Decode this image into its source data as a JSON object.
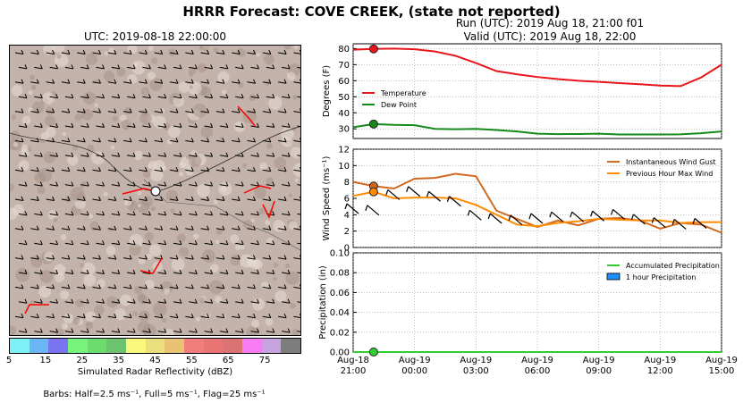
{
  "main_title": "HRRR Forecast: COVE CREEK, (state not reported)",
  "map": {
    "title": "UTC: 2019-08-18 22:00:00",
    "colorbar_label": "Simulated Radar Reflectivity (dBZ)",
    "colorbar_ticks": [
      "5",
      "15",
      "25",
      "35",
      "45",
      "55",
      "65",
      "75"
    ],
    "colorbar_colors": [
      "#7cf1f6",
      "#6bb5f4",
      "#7a74f3",
      "#79f47a",
      "#6cdc6e",
      "#6cc36f",
      "#f9f77c",
      "#ece07c",
      "#e9c274",
      "#f37c7c",
      "#e97474",
      "#da7474",
      "#f97cf7",
      "#c5a2e0",
      "#7d7d7d"
    ],
    "barbs_note": "Barbs: Half=2.5 ms⁻¹, Full=5 ms⁻¹, Flag=25 ms⁻¹",
    "terrain_color": "#c4b3aa"
  },
  "run_line": "Run (UTC): 2019 Aug 18, 21:00 f01",
  "valid_line": "Valid (UTC): 2019 Aug 18, 22:00",
  "chart_data": [
    {
      "type": "line",
      "ylabel": "Degrees (F)",
      "ylim": [
        24,
        83
      ],
      "yticks": [
        30,
        40,
        50,
        60,
        70,
        80
      ],
      "grid": true,
      "legend_position": "left",
      "x_hours": [
        0,
        1,
        2,
        3,
        4,
        5,
        6,
        7,
        8,
        9,
        10,
        11,
        12,
        13,
        14,
        15,
        16,
        17,
        18
      ],
      "series": [
        {
          "name": "Temperature",
          "color": "#e8151b",
          "values": [
            79.3,
            79.8,
            80.0,
            79.6,
            78.2,
            75.5,
            71.0,
            66.0,
            64.0,
            62.3,
            61.0,
            60.0,
            59.3,
            58.5,
            57.8,
            57.0,
            56.6,
            62.0,
            70.0
          ],
          "marker_hour": 1
        },
        {
          "name": "Dew Point",
          "color": "#15891b",
          "values": [
            31.0,
            33.0,
            32.5,
            32.3,
            30.0,
            29.8,
            30.0,
            29.3,
            28.4,
            27.0,
            26.7,
            26.8,
            27.0,
            26.5,
            26.5,
            26.5,
            26.6,
            27.3,
            28.4
          ],
          "marker_hour": 1
        }
      ]
    },
    {
      "type": "line",
      "ylabel": "Wind Speed (ms⁻¹)",
      "ylim": [
        0,
        12
      ],
      "yticks": [
        0,
        2,
        4,
        6,
        8,
        10,
        12
      ],
      "grid": true,
      "legend_position": "top-right",
      "x_hours": [
        0,
        1,
        2,
        3,
        4,
        5,
        6,
        7,
        8,
        9,
        10,
        11,
        12,
        13,
        14,
        15,
        16,
        17,
        18
      ],
      "series": [
        {
          "name": "Instantaneous Wind Gust",
          "color": "#d2691e",
          "values": [
            8.0,
            7.5,
            7.2,
            8.4,
            8.5,
            9.0,
            8.7,
            4.5,
            3.5,
            2.5,
            3.3,
            2.7,
            3.5,
            3.6,
            3.3,
            2.3,
            3.0,
            2.8,
            1.8
          ],
          "marker_hour": 1
        },
        {
          "name": "Previous Hour Max Wind",
          "color": "#ff8c00",
          "values": [
            6.3,
            6.8,
            6.0,
            6.1,
            6.1,
            6.0,
            5.2,
            4.0,
            2.8,
            2.6,
            3.0,
            3.2,
            3.5,
            3.4,
            3.3,
            3.3,
            3.0,
            3.1,
            3.1
          ],
          "marker_hour": 1
        }
      ]
    },
    {
      "type": "line",
      "ylabel": "Precipitation (in)",
      "ylim": [
        0,
        0.1
      ],
      "yticks": [
        "0.00",
        "0.02",
        "0.04",
        "0.06",
        "0.08",
        "0.10"
      ],
      "grid": true,
      "legend_position": "top-right",
      "x_hours": [
        0,
        1,
        2,
        3,
        4,
        5,
        6,
        7,
        8,
        9,
        10,
        11,
        12,
        13,
        14,
        15,
        16,
        17,
        18
      ],
      "series": [
        {
          "name": "Accumulated Precipitation",
          "color": "#32cd32",
          "values": [
            0,
            0,
            0,
            0,
            0,
            0,
            0,
            0,
            0,
            0,
            0,
            0,
            0,
            0,
            0,
            0,
            0,
            0,
            0
          ],
          "marker_hour": 1
        },
        {
          "name": "1 hour Precipitation",
          "color": "#1e90ff",
          "values": [
            0,
            0,
            0,
            0,
            0,
            0,
            0,
            0,
            0,
            0,
            0,
            0,
            0,
            0,
            0,
            0,
            0,
            0,
            0
          ]
        }
      ]
    }
  ],
  "x_axis": {
    "xlim": [
      0,
      18
    ],
    "ticks": [
      {
        "hour": 0,
        "line1": "Aug-18",
        "line2": "21:00"
      },
      {
        "hour": 3,
        "line1": "Aug-19",
        "line2": "00:00"
      },
      {
        "hour": 6,
        "line1": "Aug-19",
        "line2": "03:00"
      },
      {
        "hour": 9,
        "line1": "Aug-19",
        "line2": "06:00"
      },
      {
        "hour": 12,
        "line1": "Aug-19",
        "line2": "09:00"
      },
      {
        "hour": 15,
        "line1": "Aug-19",
        "line2": "12:00"
      },
      {
        "hour": 18,
        "line1": "Aug-19",
        "line2": "15:00"
      }
    ]
  }
}
